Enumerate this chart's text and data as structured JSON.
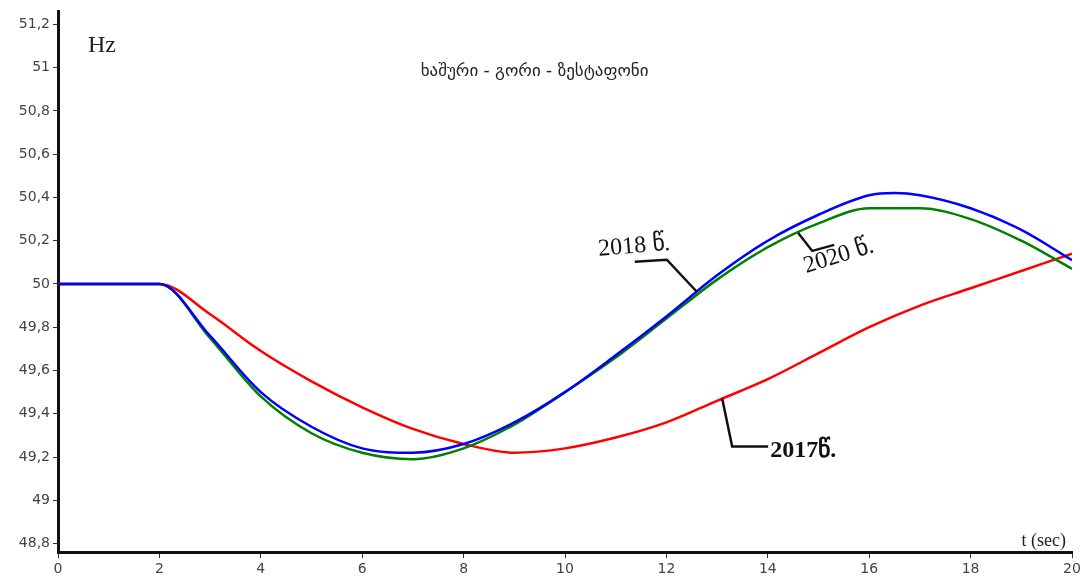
{
  "chart_data": {
    "type": "line",
    "title": "ხაშური - გორი - ზესტაფონი",
    "xlabel": "t (sec)",
    "ylabel": "Hz",
    "xlim": [
      0,
      20
    ],
    "xticks": [
      0,
      2,
      4,
      6,
      8,
      10,
      12,
      14,
      16,
      18,
      20
    ],
    "ylim": [
      48.76,
      51.26
    ],
    "yticks": [
      {
        "value": 48.8,
        "label": "48,8"
      },
      49,
      {
        "value": 49.2,
        "label": "49,2"
      },
      {
        "value": 49.4,
        "label": "49,4"
      },
      {
        "value": 49.6,
        "label": "49,6"
      },
      {
        "value": 49.8,
        "label": "49,8"
      },
      50,
      {
        "value": 50.2,
        "label": "50,2"
      },
      {
        "value": 50.4,
        "label": "50,4"
      },
      {
        "value": 50.6,
        "label": "50,6"
      },
      {
        "value": 50.8,
        "label": "50,8"
      },
      51,
      {
        "value": 51.2,
        "label": "51,2"
      }
    ],
    "grid": false,
    "legend": false,
    "marker": "none",
    "line_style": "solid",
    "series": [
      {
        "name": "2018 წ.",
        "color": "#0000ff",
        "x": [
          0,
          2,
          3,
          4,
          5,
          6,
          7,
          8,
          9,
          10,
          11,
          12,
          13,
          14,
          15,
          16,
          16.5,
          17,
          18,
          19,
          20
        ],
        "values": [
          50,
          50,
          49.76,
          49.5,
          49.34,
          49.24,
          49.22,
          49.26,
          49.36,
          49.5,
          49.67,
          49.85,
          50.04,
          50.2,
          50.32,
          50.41,
          50.42,
          50.41,
          50.35,
          50.25,
          50.11
        ]
      },
      {
        "name": "2020 წ.",
        "color": "#008000",
        "x": [
          0,
          2,
          3,
          4,
          5,
          6,
          7,
          8,
          9,
          10,
          11,
          12,
          13,
          14,
          15,
          16,
          17,
          18,
          19,
          20
        ],
        "values": [
          50,
          50,
          49.75,
          49.48,
          49.31,
          49.22,
          49.19,
          49.24,
          49.35,
          49.5,
          49.66,
          49.84,
          50.02,
          50.17,
          50.28,
          50.35,
          50.35,
          50.3,
          50.2,
          50.07
        ]
      },
      {
        "name": "2017წ.",
        "color": "#ff0000",
        "x": [
          0,
          2,
          3,
          4,
          5,
          6,
          7,
          8,
          9,
          10,
          11,
          12,
          13,
          14,
          15,
          16,
          17,
          18,
          19,
          20
        ],
        "values": [
          50,
          50,
          49.86,
          49.69,
          49.55,
          49.43,
          49.33,
          49.26,
          49.22,
          49.24,
          49.29,
          49.36,
          49.46,
          49.56,
          49.68,
          49.8,
          49.9,
          49.98,
          50.06,
          50.14
        ]
      }
    ]
  }
}
